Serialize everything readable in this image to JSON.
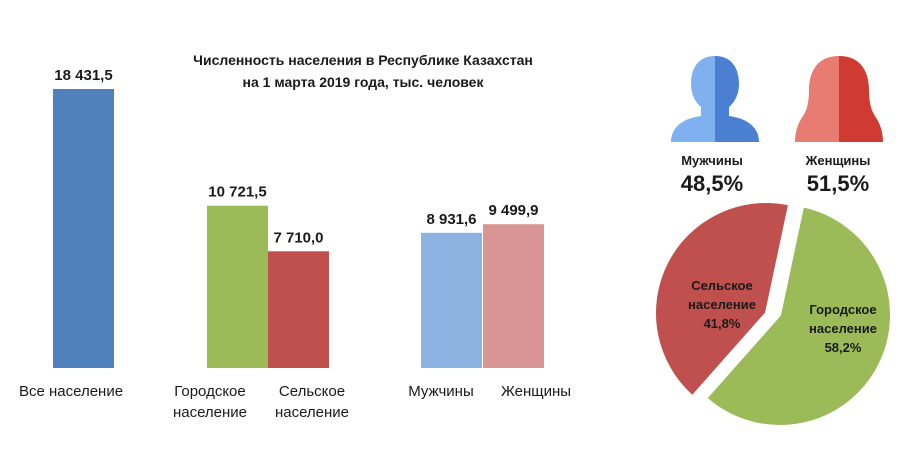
{
  "chart_data": [
    {
      "type": "bar",
      "title_lines": [
        "Численность населения  в Республике  Казахстан",
        "на 1 марта  2019 года, тыс. человек"
      ],
      "ylim": [
        0,
        18431.5
      ],
      "bars": [
        {
          "label_lines": [
            "Все население"
          ],
          "value": 18431.5,
          "value_label": "18 431,5",
          "color": "#4f81bd"
        },
        {
          "label_lines": [
            "Городское",
            "население"
          ],
          "value": 10721.5,
          "value_label": "10 721,5",
          "color": "#9bbb59"
        },
        {
          "label_lines": [
            "Сельское",
            "население"
          ],
          "value": 7710.0,
          "value_label": "7 710,0",
          "color": "#c0504d"
        },
        {
          "label_lines": [
            "Мужчины"
          ],
          "value": 8931.6,
          "value_label": "8 931,6",
          "color": "#8db3e2"
        },
        {
          "label_lines": [
            "Женщины"
          ],
          "value": 9499.9,
          "value_label": "9 499,9",
          "color": "#d99594"
        }
      ]
    },
    {
      "type": "pie",
      "slices": [
        {
          "label_lines": [
            "Городское",
            "население",
            "58,2%"
          ],
          "value": 58.2,
          "color": "#9bbb59"
        },
        {
          "label_lines": [
            "Сельское",
            "население",
            "41,8%"
          ],
          "value": 41.8,
          "color": "#c0504d"
        }
      ]
    }
  ],
  "gender": [
    {
      "label": "Мужчины",
      "percent": "48,5%",
      "icon": "male-person-icon",
      "color": "#5b8ed6"
    },
    {
      "label": "Женщины",
      "percent": "51,5%",
      "icon": "female-person-icon",
      "color": "#d2483f"
    }
  ]
}
